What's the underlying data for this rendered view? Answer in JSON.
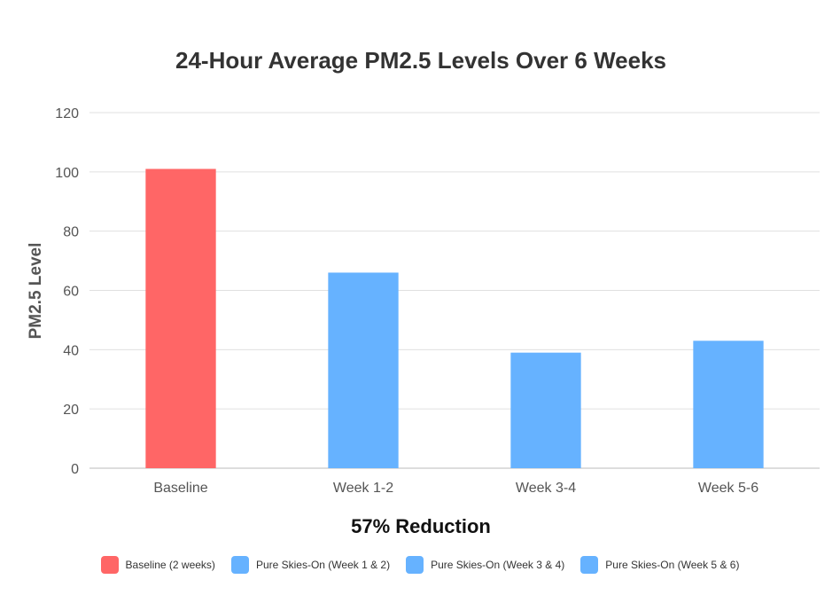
{
  "chart_data": {
    "type": "bar",
    "title": "24-Hour Average PM2.5 Levels Over 6 Weeks",
    "xlabel": "57% Reduction",
    "ylabel": "PM2.5 Level",
    "categories": [
      "Baseline",
      "Week 1-2",
      "Week 3-4",
      "Week 5-6"
    ],
    "values": [
      101,
      66,
      39,
      43
    ],
    "bar_colors": [
      "#ff6666",
      "#66b2ff",
      "#66b2ff",
      "#66b2ff"
    ],
    "ylim": [
      0,
      120
    ],
    "yticks": [
      0,
      20,
      40,
      60,
      80,
      100,
      120
    ],
    "grid": true,
    "legend_position": "bottom",
    "legend": [
      {
        "label": "Baseline (2 weeks)",
        "color": "#ff6666"
      },
      {
        "label": "Pure Skies-On (Week 1 & 2)",
        "color": "#66b2ff"
      },
      {
        "label": "Pure Skies-On (Week 3 & 4)",
        "color": "#66b2ff"
      },
      {
        "label": "Pure Skies-On (Week 5 & 6)",
        "color": "#66b2ff"
      }
    ]
  }
}
